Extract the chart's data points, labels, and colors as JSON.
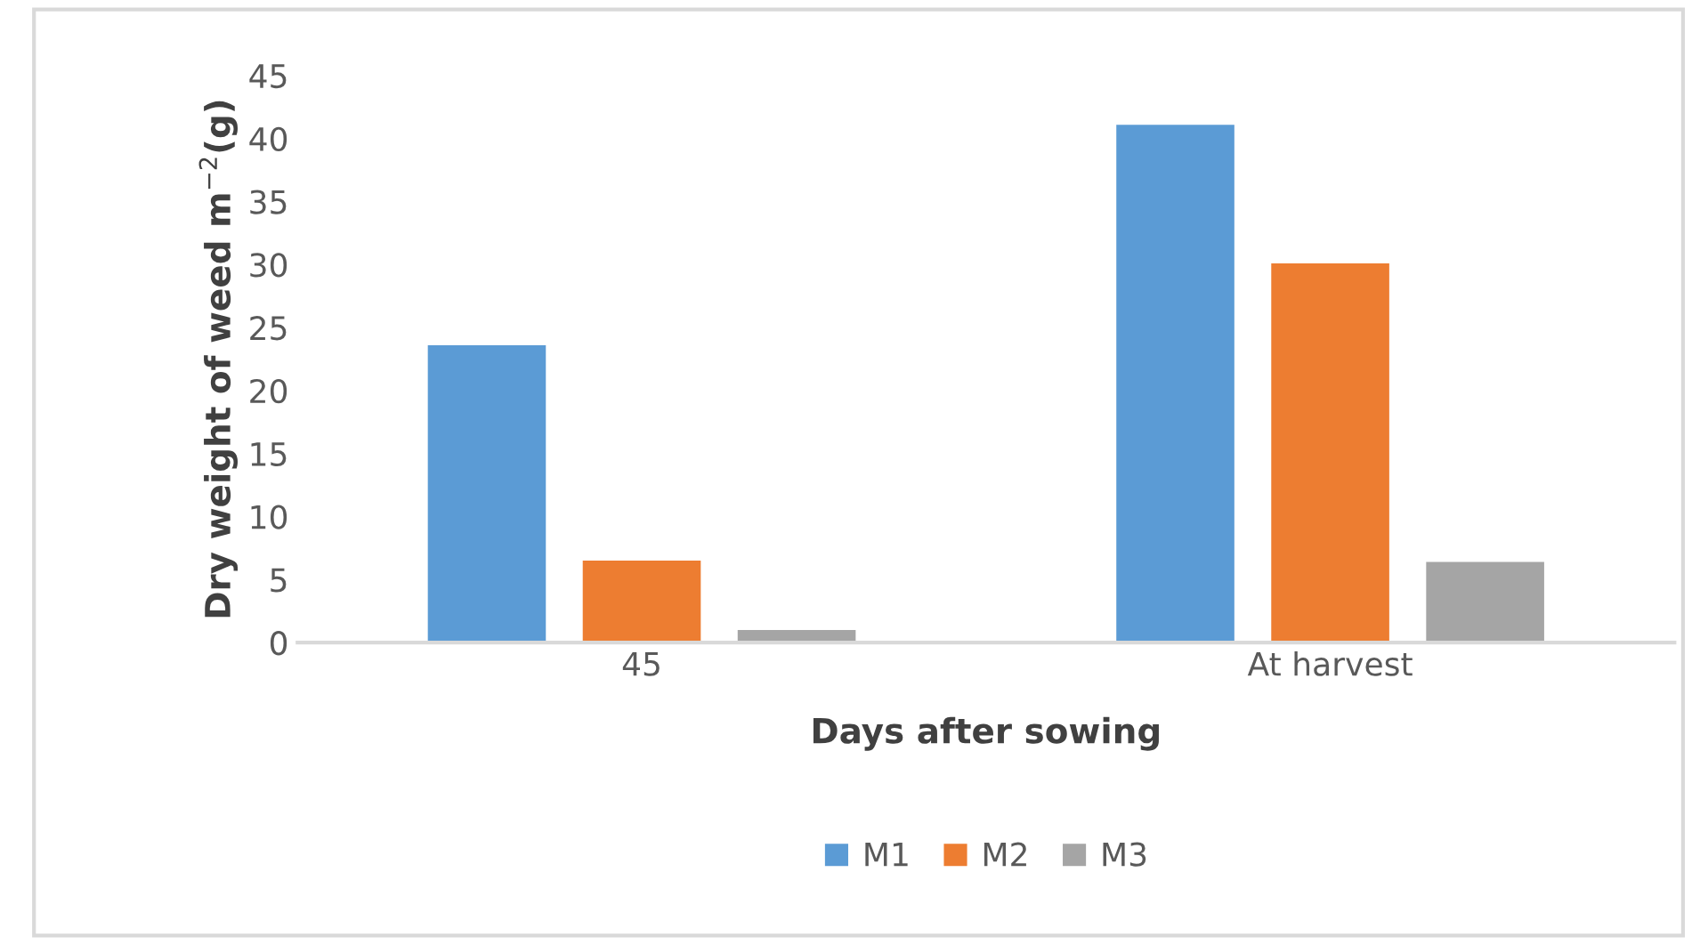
{
  "chart_data": {
    "type": "bar",
    "xlabel": "Days after sowing",
    "ylabel": "Dry weight of weed m$^{−2}$(g)",
    "categories": [
      "45",
      "At harvest"
    ],
    "series": [
      {
        "name": "M1",
        "color": "#5b9bd5",
        "values": [
          23.7,
          41.2
        ]
      },
      {
        "name": "M2",
        "color": "#ed7d31",
        "values": [
          6.6,
          30.2
        ]
      },
      {
        "name": "M3",
        "color": "#a5a5a5",
        "values": [
          1.1,
          6.5
        ]
      }
    ],
    "ylim": [
      0,
      45
    ],
    "yticks": [
      0,
      5,
      10,
      15,
      20,
      25,
      30,
      35,
      40,
      45
    ],
    "grid": false,
    "legend": "bottom"
  }
}
